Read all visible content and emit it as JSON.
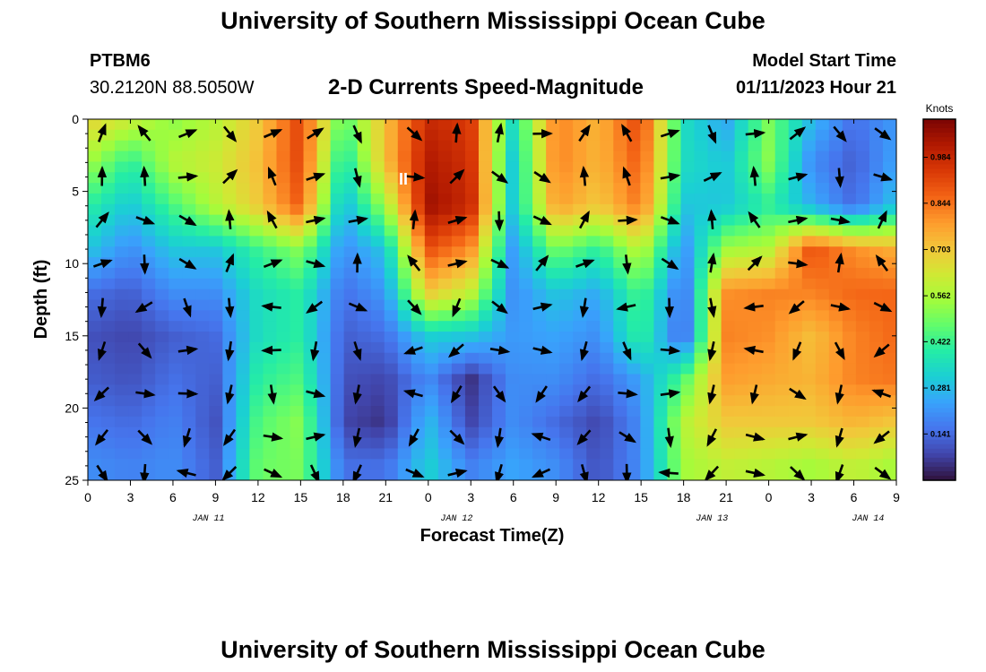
{
  "header": {
    "title": "University of Southern Mississippi Ocean Cube",
    "station": "PTBM6",
    "coords": "30.2120N  88.5050W",
    "plot_title": "2-D Currents Speed-Magnitude",
    "model_label": "Model Start Time",
    "model_time": "01/11/2023 Hour 21"
  },
  "footer": {
    "title": "University of Southern Mississippi Ocean Cube"
  },
  "marker_label": "II",
  "colors": {
    "scale": [
      "#30123b",
      "#4145ab",
      "#4675ed",
      "#39a2fc",
      "#1bcfd4",
      "#24eca6",
      "#61fc6c",
      "#a4fc3b",
      "#d1e834",
      "#f3c63a",
      "#fe9b2d",
      "#f36315",
      "#d93806",
      "#b11901",
      "#7a0403"
    ]
  },
  "chart_data": {
    "type": "heatmap",
    "xlabel": "Forecast Time(Z)",
    "ylabel": "Depth (ft)",
    "x_range": [
      0,
      57
    ],
    "y_range": [
      0,
      25
    ],
    "x_ticks": [
      "0",
      "3",
      "6",
      "9",
      "12",
      "15",
      "18",
      "21",
      "0",
      "3",
      "6",
      "9",
      "12",
      "15",
      "18",
      "21",
      "0",
      "3",
      "6",
      "9",
      "12",
      "15",
      "18",
      "21",
      "0",
      "3",
      "6",
      "9",
      "12",
      "15",
      "18",
      "21",
      "0",
      "3",
      "6"
    ],
    "y_ticks": [
      "0",
      "5",
      "10",
      "15",
      "20",
      "25"
    ],
    "dates": [
      {
        "label": "JAN 11",
        "x": 8.5
      },
      {
        "label": "JAN 12",
        "x": 26
      },
      {
        "label": "JAN 13",
        "x": 44
      },
      {
        "label": "JAN 14",
        "x": 55
      }
    ],
    "colorbar": {
      "title": "Knots",
      "range": [
        0,
        1.1
      ],
      "ticks": [
        "0.984",
        "0.844",
        "0.703",
        "0.562",
        "0.422",
        "0.281",
        "0.141"
      ],
      "tick_values": [
        0.984,
        0.844,
        0.703,
        0.562,
        0.422,
        0.281,
        0.141
      ]
    },
    "speed_knots": {
      "x": [
        0,
        3,
        6,
        9,
        12,
        15,
        18,
        21,
        24,
        27,
        30,
        33,
        36,
        39,
        42,
        45,
        48,
        51,
        54,
        57
      ],
      "depth_ft": [
        0,
        3,
        6,
        9,
        12,
        15,
        18,
        21,
        24
      ],
      "values": [
        [
          0.68,
          0.62,
          0.52,
          0.58,
          0.7,
          0.92,
          0.45,
          0.72,
          0.98,
          0.94,
          0.35,
          0.82,
          0.74,
          0.92,
          0.35,
          0.24,
          0.5,
          0.28,
          0.15,
          0.22
        ],
        [
          0.55,
          0.4,
          0.58,
          0.62,
          0.72,
          0.92,
          0.35,
          0.72,
          1.02,
          0.96,
          0.3,
          0.82,
          0.74,
          0.88,
          0.35,
          0.3,
          0.52,
          0.2,
          0.12,
          0.24
        ],
        [
          0.4,
          0.3,
          0.44,
          0.58,
          0.7,
          0.88,
          0.26,
          0.55,
          1.05,
          0.98,
          0.3,
          0.78,
          0.7,
          0.84,
          0.3,
          0.3,
          0.4,
          0.26,
          0.14,
          0.3
        ],
        [
          0.3,
          0.2,
          0.3,
          0.3,
          0.42,
          0.52,
          0.2,
          0.3,
          0.9,
          0.8,
          0.22,
          0.5,
          0.4,
          0.6,
          0.2,
          0.55,
          0.58,
          0.9,
          0.8,
          0.75
        ],
        [
          0.15,
          0.12,
          0.2,
          0.2,
          0.35,
          0.4,
          0.15,
          0.22,
          0.7,
          0.6,
          0.2,
          0.3,
          0.25,
          0.45,
          0.14,
          0.8,
          0.82,
          0.82,
          0.86,
          0.86
        ],
        [
          0.1,
          0.08,
          0.12,
          0.14,
          0.35,
          0.4,
          0.12,
          0.15,
          0.32,
          0.3,
          0.22,
          0.24,
          0.2,
          0.42,
          0.12,
          0.82,
          0.8,
          0.72,
          0.82,
          0.86
        ],
        [
          0.12,
          0.1,
          0.15,
          0.12,
          0.4,
          0.45,
          0.1,
          0.08,
          0.2,
          0.05,
          0.2,
          0.2,
          0.14,
          0.24,
          0.45,
          0.78,
          0.76,
          0.74,
          0.82,
          0.84
        ],
        [
          0.16,
          0.14,
          0.18,
          0.1,
          0.45,
          0.52,
          0.08,
          0.05,
          0.28,
          0.08,
          0.2,
          0.14,
          0.08,
          0.2,
          0.58,
          0.7,
          0.7,
          0.7,
          0.74,
          0.7
        ],
        [
          0.2,
          0.18,
          0.2,
          0.12,
          0.48,
          0.5,
          0.15,
          0.15,
          0.32,
          0.18,
          0.24,
          0.2,
          0.1,
          0.2,
          0.55,
          0.6,
          0.58,
          0.55,
          0.6,
          0.55
        ]
      ]
    }
  }
}
